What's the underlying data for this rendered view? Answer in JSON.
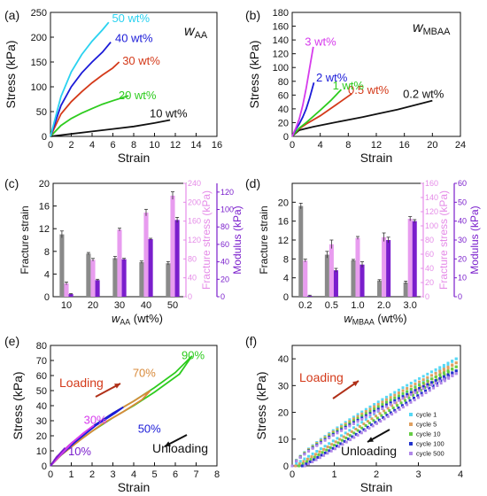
{
  "chart_data": [
    {
      "panel": "(a)",
      "type": "line",
      "title": "w",
      "title_sub": "AA",
      "xlabel": "Strain",
      "ylabel": "Stress (kPa)",
      "xlim": [
        0,
        16
      ],
      "ylim": [
        0,
        250
      ],
      "xticks": [
        0,
        2,
        4,
        6,
        8,
        10,
        12,
        14,
        16
      ],
      "yticks": [
        0,
        50,
        100,
        150,
        200,
        250
      ],
      "series": [
        {
          "name": "10 wt%",
          "color": "#111111",
          "x": [
            0,
            2,
            4,
            6,
            8,
            10,
            11.5
          ],
          "y": [
            0,
            5,
            10,
            15,
            20,
            27,
            33
          ]
        },
        {
          "name": "20 wt%",
          "color": "#2ecc1f",
          "x": [
            0,
            1,
            2,
            3,
            4,
            5,
            6,
            7.5
          ],
          "y": [
            0,
            22,
            36,
            47,
            56,
            65,
            72,
            82
          ]
        },
        {
          "name": "30 wt%",
          "color": "#d43a1a",
          "x": [
            0,
            1,
            2,
            3,
            4,
            5,
            6,
            6.6
          ],
          "y": [
            0,
            45,
            70,
            90,
            108,
            124,
            138,
            150
          ]
        },
        {
          "name": "40 wt%",
          "color": "#1b1bd8",
          "x": [
            0,
            1,
            2,
            3,
            4,
            5,
            5.8
          ],
          "y": [
            0,
            62,
            100,
            128,
            150,
            170,
            190
          ]
        },
        {
          "name": "50 wt%",
          "color": "#2ad2f0",
          "x": [
            0,
            1,
            2,
            3,
            4,
            5,
            5.6
          ],
          "y": [
            0,
            80,
            130,
            165,
            192,
            215,
            230
          ]
        }
      ]
    },
    {
      "panel": "(b)",
      "type": "line",
      "title": "w",
      "title_sub": "MBAA",
      "xlabel": "Strain",
      "ylabel": "Stress (kPa)",
      "xlim": [
        0,
        24
      ],
      "ylim": [
        0,
        180
      ],
      "xticks": [
        0,
        4,
        8,
        12,
        16,
        20,
        24
      ],
      "yticks": [
        0,
        20,
        40,
        60,
        80,
        100,
        120,
        140,
        160,
        180
      ],
      "series": [
        {
          "name": "0.2 wt%",
          "color": "#111111",
          "x": [
            0,
            1,
            3,
            6,
            10,
            15,
            20
          ],
          "y": [
            0,
            9,
            14,
            20,
            28,
            39,
            52
          ]
        },
        {
          "name": "0.5 wt%",
          "color": "#d43a1a",
          "x": [
            0,
            1,
            2,
            4,
            6,
            8.5
          ],
          "y": [
            0,
            11,
            18,
            30,
            44,
            62
          ]
        },
        {
          "name": "1 wt%",
          "color": "#2ecc1f",
          "x": [
            0,
            1,
            2,
            3,
            4,
            5.5,
            7
          ],
          "y": [
            0,
            12,
            20,
            29,
            38,
            52,
            68
          ]
        },
        {
          "name": "2 wt%",
          "color": "#1b1bd8",
          "x": [
            0,
            0.5,
            1,
            1.5,
            2,
            2.5,
            3.1
          ],
          "y": [
            0,
            10,
            18,
            28,
            40,
            56,
            78
          ]
        },
        {
          "name": "3 wt%",
          "color": "#d63bec",
          "x": [
            0,
            0.5,
            1,
            1.5,
            2,
            2.5,
            3
          ],
          "y": [
            0,
            12,
            25,
            45,
            70,
            100,
            130
          ]
        }
      ]
    },
    {
      "panel": "(c)",
      "type": "bar",
      "xlabel": "w",
      "xlabel_sub": "AA",
      "xlabel_suffix": " (wt%)",
      "categories": [
        "10",
        "20",
        "30",
        "40",
        "50"
      ],
      "axes": {
        "left": {
          "label": "Fracture strain",
          "ylim": [
            0,
            20
          ],
          "ticks": [
            0,
            4,
            8,
            12,
            16,
            20
          ],
          "color": "#222222"
        },
        "right1": {
          "label": "Fracture stress (kPa)",
          "ylim": [
            0,
            240
          ],
          "ticks": [
            0,
            40,
            80,
            120,
            160,
            200,
            240
          ],
          "color": "#e58ce8"
        },
        "right2": {
          "label": "Modulus (kPa)",
          "ylim": [
            0,
            130
          ],
          "ticks": [
            0,
            20,
            40,
            60,
            80,
            100,
            120
          ],
          "color": "#7a1ecc"
        }
      },
      "series": [
        {
          "name": "Fracture strain",
          "axis": "left",
          "color": "#8a8a8a",
          "values": [
            11,
            7.6,
            6.8,
            6.1,
            5.9
          ],
          "errors": [
            0.6,
            0.2,
            0.3,
            0.2,
            0.3
          ]
        },
        {
          "name": "Fracture stress",
          "axis": "right1",
          "color": "#e89cef",
          "values": [
            28,
            78,
            142,
            178,
            214
          ],
          "errors": [
            3,
            3,
            3,
            7,
            8
          ]
        },
        {
          "name": "Modulus",
          "axis": "right2",
          "color": "#7a1ecc",
          "values": [
            3,
            19,
            43,
            66,
            88
          ],
          "errors": [
            0.5,
            1,
            1,
            1,
            3
          ]
        }
      ]
    },
    {
      "panel": "(d)",
      "type": "bar",
      "xlabel": "w",
      "xlabel_sub": "MBAA",
      "xlabel_suffix": " (wt%)",
      "categories": [
        "0.2",
        "0.5",
        "1.0",
        "2.0",
        "3.0"
      ],
      "axes": {
        "left": {
          "label": "Fracture strain",
          "ylim": [
            0,
            24
          ],
          "ticks": [
            0,
            4,
            8,
            12,
            16,
            20
          ],
          "color": "#222222"
        },
        "right1": {
          "label": "Fracture stress (kPa)",
          "ylim": [
            0,
            160
          ],
          "ticks": [
            0,
            20,
            40,
            60,
            80,
            100,
            120,
            140,
            160
          ],
          "color": "#e58ce8"
        },
        "right2": {
          "label": "Modulus (kPa)",
          "ylim": [
            0,
            60
          ],
          "ticks": [
            0,
            10,
            20,
            30,
            40,
            50,
            60
          ],
          "color": "#7a1ecc"
        }
      },
      "series": [
        {
          "name": "Fracture strain",
          "axis": "left",
          "color": "#8a8a8a",
          "values": [
            19.2,
            8.9,
            7.7,
            3.4,
            3.0
          ],
          "errors": [
            0.6,
            0.7,
            0.2,
            0.2,
            0.3
          ]
        },
        {
          "name": "Fracture stress",
          "axis": "right1",
          "color": "#e89cef",
          "values": [
            51,
            74,
            83,
            84,
            110
          ],
          "errors": [
            2,
            6,
            2,
            6,
            3
          ]
        },
        {
          "name": "Modulus",
          "axis": "right2",
          "color": "#7a1ecc",
          "values": [
            0.5,
            14,
            17,
            30,
            40
          ],
          "errors": [
            0.3,
            1,
            1.5,
            1.5,
            0.8
          ]
        }
      ]
    },
    {
      "panel": "(e)",
      "type": "line",
      "xlabel": "Strain",
      "ylabel": "Stress (kPa)",
      "xlim": [
        0,
        8
      ],
      "ylim": [
        0,
        80
      ],
      "xticks": [
        0,
        1,
        2,
        3,
        4,
        5,
        6,
        7,
        8
      ],
      "yticks": [
        0,
        10,
        20,
        30,
        40,
        50,
        60,
        70,
        80
      ],
      "annotations": {
        "loading": "Loading",
        "unloading": "Unloading",
        "labels": [
          {
            "text": "10%",
            "color": "#7a1ecc"
          },
          {
            "text": "30%",
            "color": "#d63bec"
          },
          {
            "text": "50%",
            "color": "#1b1bd8"
          },
          {
            "text": "70%",
            "color": "#d88a3a"
          },
          {
            "text": "90%",
            "color": "#2ecc1f"
          }
        ]
      },
      "series": [
        {
          "name": "90%",
          "color": "#2ecc1f",
          "x": [
            0,
            0.3,
            1,
            2,
            3,
            4,
            5,
            6,
            6.8,
            6.2,
            5,
            4,
            3,
            2,
            1,
            0.3,
            0
          ],
          "y": [
            0,
            6,
            15,
            26,
            35,
            43,
            52,
            62,
            73,
            61,
            49,
            40,
            32,
            23,
            13,
            5,
            0
          ]
        },
        {
          "name": "70%",
          "color": "#d88a3a",
          "x": [
            0,
            0.3,
            1,
            2,
            3,
            4,
            4.8,
            4.4,
            3.5,
            2.5,
            1.5,
            0.5,
            0
          ],
          "y": [
            0,
            6,
            15,
            26,
            35,
            43,
            50,
            44,
            36,
            28,
            18,
            7,
            0
          ]
        },
        {
          "name": "50%",
          "color": "#1b1bd8",
          "x": [
            0,
            0.3,
            1,
            2,
            3,
            3.5,
            3.1,
            2.2,
            1.2,
            0.4,
            0
          ],
          "y": [
            0,
            6,
            15,
            26,
            35,
            39,
            35,
            27,
            16,
            6,
            0
          ]
        },
        {
          "name": "30%",
          "color": "#d63bec",
          "x": [
            0,
            0.3,
            1,
            1.6,
            2.1,
            1.8,
            1.1,
            0.4,
            0
          ],
          "y": [
            0,
            6,
            15,
            22,
            27,
            24,
            16,
            6,
            0
          ]
        },
        {
          "name": "10%",
          "color": "#7a1ecc",
          "x": [
            0,
            0.2,
            0.5,
            0.7,
            0.5,
            0.2,
            0
          ],
          "y": [
            0,
            4,
            9,
            12,
            9,
            4,
            0
          ]
        }
      ]
    },
    {
      "panel": "(f)",
      "type": "scatter",
      "xlabel": "Strain",
      "ylabel": "Stress (kPa)",
      "xlim": [
        0,
        4
      ],
      "ylim": [
        0,
        45
      ],
      "xticks": [
        0,
        1,
        2,
        3,
        4
      ],
      "yticks": [
        0,
        10,
        20,
        30,
        40
      ],
      "annotations": {
        "loading": "Loading",
        "unloading": "Unloading"
      },
      "series": [
        {
          "name": "cycle 1",
          "color": "#55d8f5",
          "offset": 0.0,
          "maxY": 40
        },
        {
          "name": "cycle 5",
          "color": "#e0a060",
          "offset": 0.08,
          "maxY": 38.5
        },
        {
          "name": "cycle 10",
          "color": "#66cc44",
          "offset": 0.16,
          "maxY": 37
        },
        {
          "name": "cycle 100",
          "color": "#2233cc",
          "offset": 0.24,
          "maxY": 35.5
        },
        {
          "name": "cycle 500",
          "color": "#b088e8",
          "offset": 0.3,
          "maxY": 34.5
        }
      ]
    }
  ]
}
